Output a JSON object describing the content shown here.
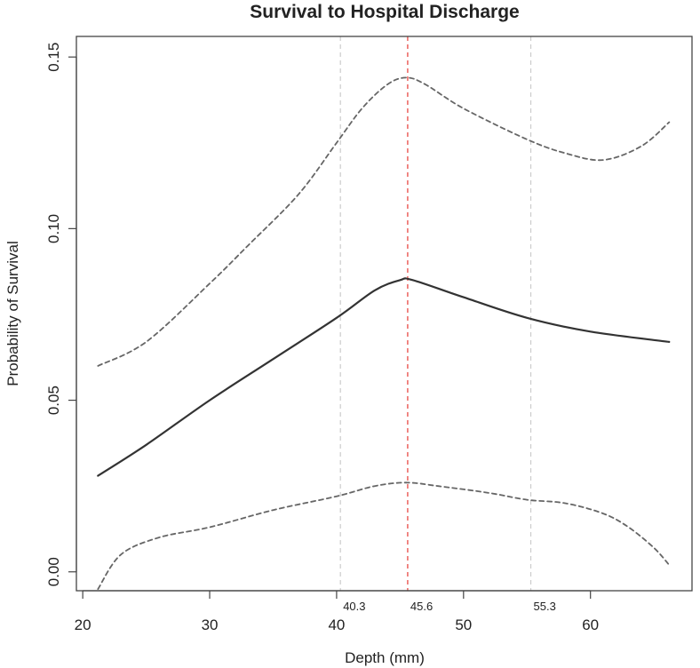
{
  "chart_data": {
    "type": "line",
    "title": "Survival to Hospital Discharge",
    "xlabel": "Depth (mm)",
    "ylabel": "Probability of Survival",
    "xlim": [
      19.5,
      68
    ],
    "ylim": [
      -0.0055,
      0.156
    ],
    "x_ticks": [
      20,
      30,
      40,
      50,
      60
    ],
    "y_ticks": [
      0.0,
      0.05,
      0.1,
      0.15
    ],
    "y_tick_labels": [
      "0.00",
      "0.05",
      "0.10",
      "0.15"
    ],
    "grid": false,
    "legend": "none",
    "reference_lines": [
      {
        "x": 40.3,
        "label": "40.3",
        "color": "#cccccc"
      },
      {
        "x": 45.6,
        "label": "45.6",
        "color": "#e53935"
      },
      {
        "x": 55.3,
        "label": "55.3",
        "color": "#cccccc"
      }
    ],
    "series": [
      {
        "style": "solid",
        "color": "#333333",
        "x": [
          21.2,
          25,
          30,
          35,
          40,
          43,
          45,
          46,
          50,
          55,
          60,
          66.2
        ],
        "y": [
          0.028,
          0.037,
          0.05,
          0.062,
          0.074,
          0.082,
          0.085,
          0.085,
          0.08,
          0.074,
          0.07,
          0.067
        ]
      },
      {
        "style": "dashed",
        "color": "#666666",
        "x": [
          21.2,
          25,
          30,
          33,
          37,
          40,
          42,
          44,
          45.5,
          47,
          50,
          55,
          58,
          61,
          64,
          66.2
        ],
        "y": [
          0.06,
          0.067,
          0.084,
          0.095,
          0.11,
          0.125,
          0.135,
          0.142,
          0.144,
          0.142,
          0.135,
          0.126,
          0.122,
          0.12,
          0.124,
          0.131
        ]
      },
      {
        "style": "dashed",
        "color": "#666666",
        "x": [
          21.2,
          23,
          26,
          30,
          35,
          40,
          43,
          45.5,
          48,
          52,
          55,
          58,
          61,
          63,
          65,
          66.2
        ],
        "y": [
          -0.005,
          0.005,
          0.01,
          0.013,
          0.018,
          0.022,
          0.025,
          0.026,
          0.025,
          0.023,
          0.021,
          0.02,
          0.017,
          0.013,
          0.007,
          0.002
        ]
      }
    ]
  }
}
